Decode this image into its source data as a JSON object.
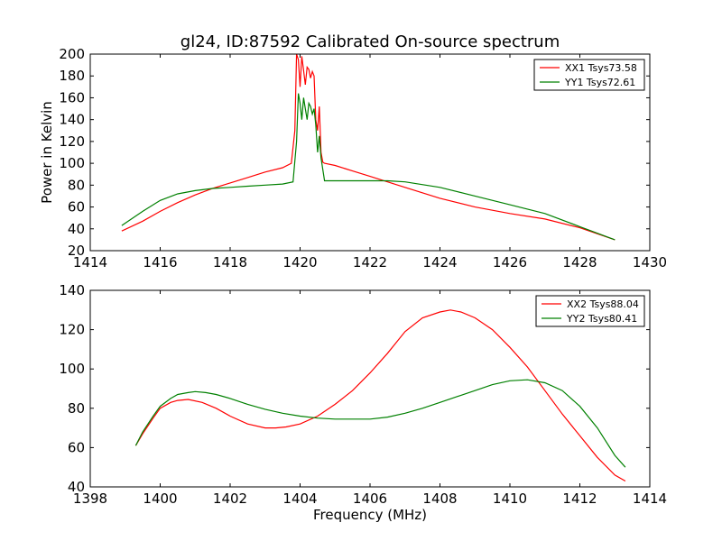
{
  "chart_data": [
    {
      "type": "line",
      "title": "gl24, ID:87592 Calibrated On-source spectrum",
      "xlabel": "",
      "ylabel": "Power in Kelvin",
      "xlim": [
        1414,
        1430
      ],
      "ylim": [
        20,
        200
      ],
      "xticks": [
        1414,
        1416,
        1418,
        1420,
        1422,
        1424,
        1426,
        1428,
        1430
      ],
      "yticks": [
        20,
        40,
        60,
        80,
        100,
        120,
        140,
        160,
        180,
        200
      ],
      "grid": false,
      "legend": "top-right",
      "series": [
        {
          "name": "XX1 Tsys73.58",
          "color": "#ff0000",
          "x": [
            1414.9,
            1415.5,
            1416,
            1416.5,
            1417,
            1417.5,
            1418,
            1418.5,
            1419,
            1419.5,
            1419.75,
            1419.85,
            1419.9,
            1419.95,
            1420.0,
            1420.05,
            1420.1,
            1420.15,
            1420.2,
            1420.25,
            1420.3,
            1420.35,
            1420.4,
            1420.45,
            1420.5,
            1420.55,
            1420.6,
            1420.65,
            1420.7,
            1421,
            1421.5,
            1422,
            1422.5,
            1423,
            1424,
            1425,
            1426,
            1427,
            1428,
            1429
          ],
          "y": [
            38,
            47,
            56,
            64,
            71,
            77,
            82,
            87,
            92,
            96,
            100,
            130,
            200,
            195,
            170,
            198,
            185,
            172,
            188,
            186,
            178,
            184,
            180,
            140,
            130,
            152,
            110,
            101,
            100,
            98,
            93,
            88,
            83,
            78,
            68,
            60,
            54,
            49,
            41,
            30
          ]
        },
        {
          "name": "YY1 Tsys72.61",
          "color": "#008000",
          "x": [
            1414.9,
            1415.5,
            1416,
            1416.5,
            1417,
            1417.5,
            1418,
            1418.5,
            1419,
            1419.5,
            1419.8,
            1419.9,
            1419.95,
            1420.0,
            1420.05,
            1420.1,
            1420.15,
            1420.2,
            1420.25,
            1420.3,
            1420.35,
            1420.4,
            1420.45,
            1420.5,
            1420.55,
            1420.6,
            1420.7,
            1421,
            1421.5,
            1422,
            1422.5,
            1423,
            1424,
            1425,
            1426,
            1427,
            1428,
            1429
          ],
          "y": [
            43,
            56,
            66,
            72,
            75,
            77,
            78,
            79,
            80,
            81,
            83,
            120,
            164,
            155,
            140,
            160,
            150,
            140,
            155,
            152,
            145,
            150,
            135,
            110,
            125,
            105,
            84,
            84,
            84,
            84,
            84,
            83,
            78,
            70,
            62,
            54,
            42,
            30
          ]
        }
      ]
    },
    {
      "type": "line",
      "title": "",
      "xlabel": "Frequency (MHz)",
      "ylabel": "",
      "xlim": [
        1398,
        1414
      ],
      "ylim": [
        40,
        140
      ],
      "xticks": [
        1398,
        1400,
        1402,
        1404,
        1406,
        1408,
        1410,
        1412,
        1414
      ],
      "yticks": [
        40,
        60,
        80,
        100,
        120,
        140
      ],
      "grid": false,
      "legend": "top-right",
      "series": [
        {
          "name": "XX2 Tsys88.04",
          "color": "#ff0000",
          "x": [
            1399.3,
            1399.5,
            1399.8,
            1400,
            1400.3,
            1400.5,
            1400.8,
            1401.2,
            1401.6,
            1402,
            1402.5,
            1403,
            1403.3,
            1403.6,
            1404,
            1404.5,
            1405,
            1405.5,
            1406,
            1406.5,
            1407,
            1407.5,
            1408,
            1408.3,
            1408.6,
            1409,
            1409.5,
            1410,
            1410.5,
            1411,
            1411.5,
            1412,
            1412.5,
            1413,
            1413.3
          ],
          "y": [
            61,
            67,
            75,
            80,
            83,
            84,
            84.5,
            83,
            80,
            76,
            72,
            70,
            70,
            70.5,
            72,
            76,
            82,
            89,
            98,
            108,
            119,
            126,
            129,
            130,
            129,
            126,
            120,
            111,
            101,
            89,
            77,
            66,
            55,
            46,
            43
          ]
        },
        {
          "name": "YY2 Tsys80.41",
          "color": "#008000",
          "x": [
            1399.3,
            1399.5,
            1399.8,
            1400,
            1400.3,
            1400.5,
            1400.8,
            1401,
            1401.3,
            1401.6,
            1402,
            1402.5,
            1403,
            1403.5,
            1404,
            1404.5,
            1405,
            1405.5,
            1406,
            1406.5,
            1407,
            1407.5,
            1408,
            1408.5,
            1409,
            1409.5,
            1410,
            1410.5,
            1411,
            1411.5,
            1412,
            1412.5,
            1413,
            1413.3
          ],
          "y": [
            61,
            68,
            76,
            81,
            85,
            87,
            88,
            88.5,
            88,
            87,
            85,
            82,
            79.5,
            77.5,
            76,
            75,
            74.5,
            74.5,
            74.5,
            75.5,
            77.5,
            80,
            83,
            86,
            89,
            92,
            94,
            94.5,
            93,
            89,
            81,
            70,
            56,
            50
          ]
        }
      ]
    }
  ]
}
